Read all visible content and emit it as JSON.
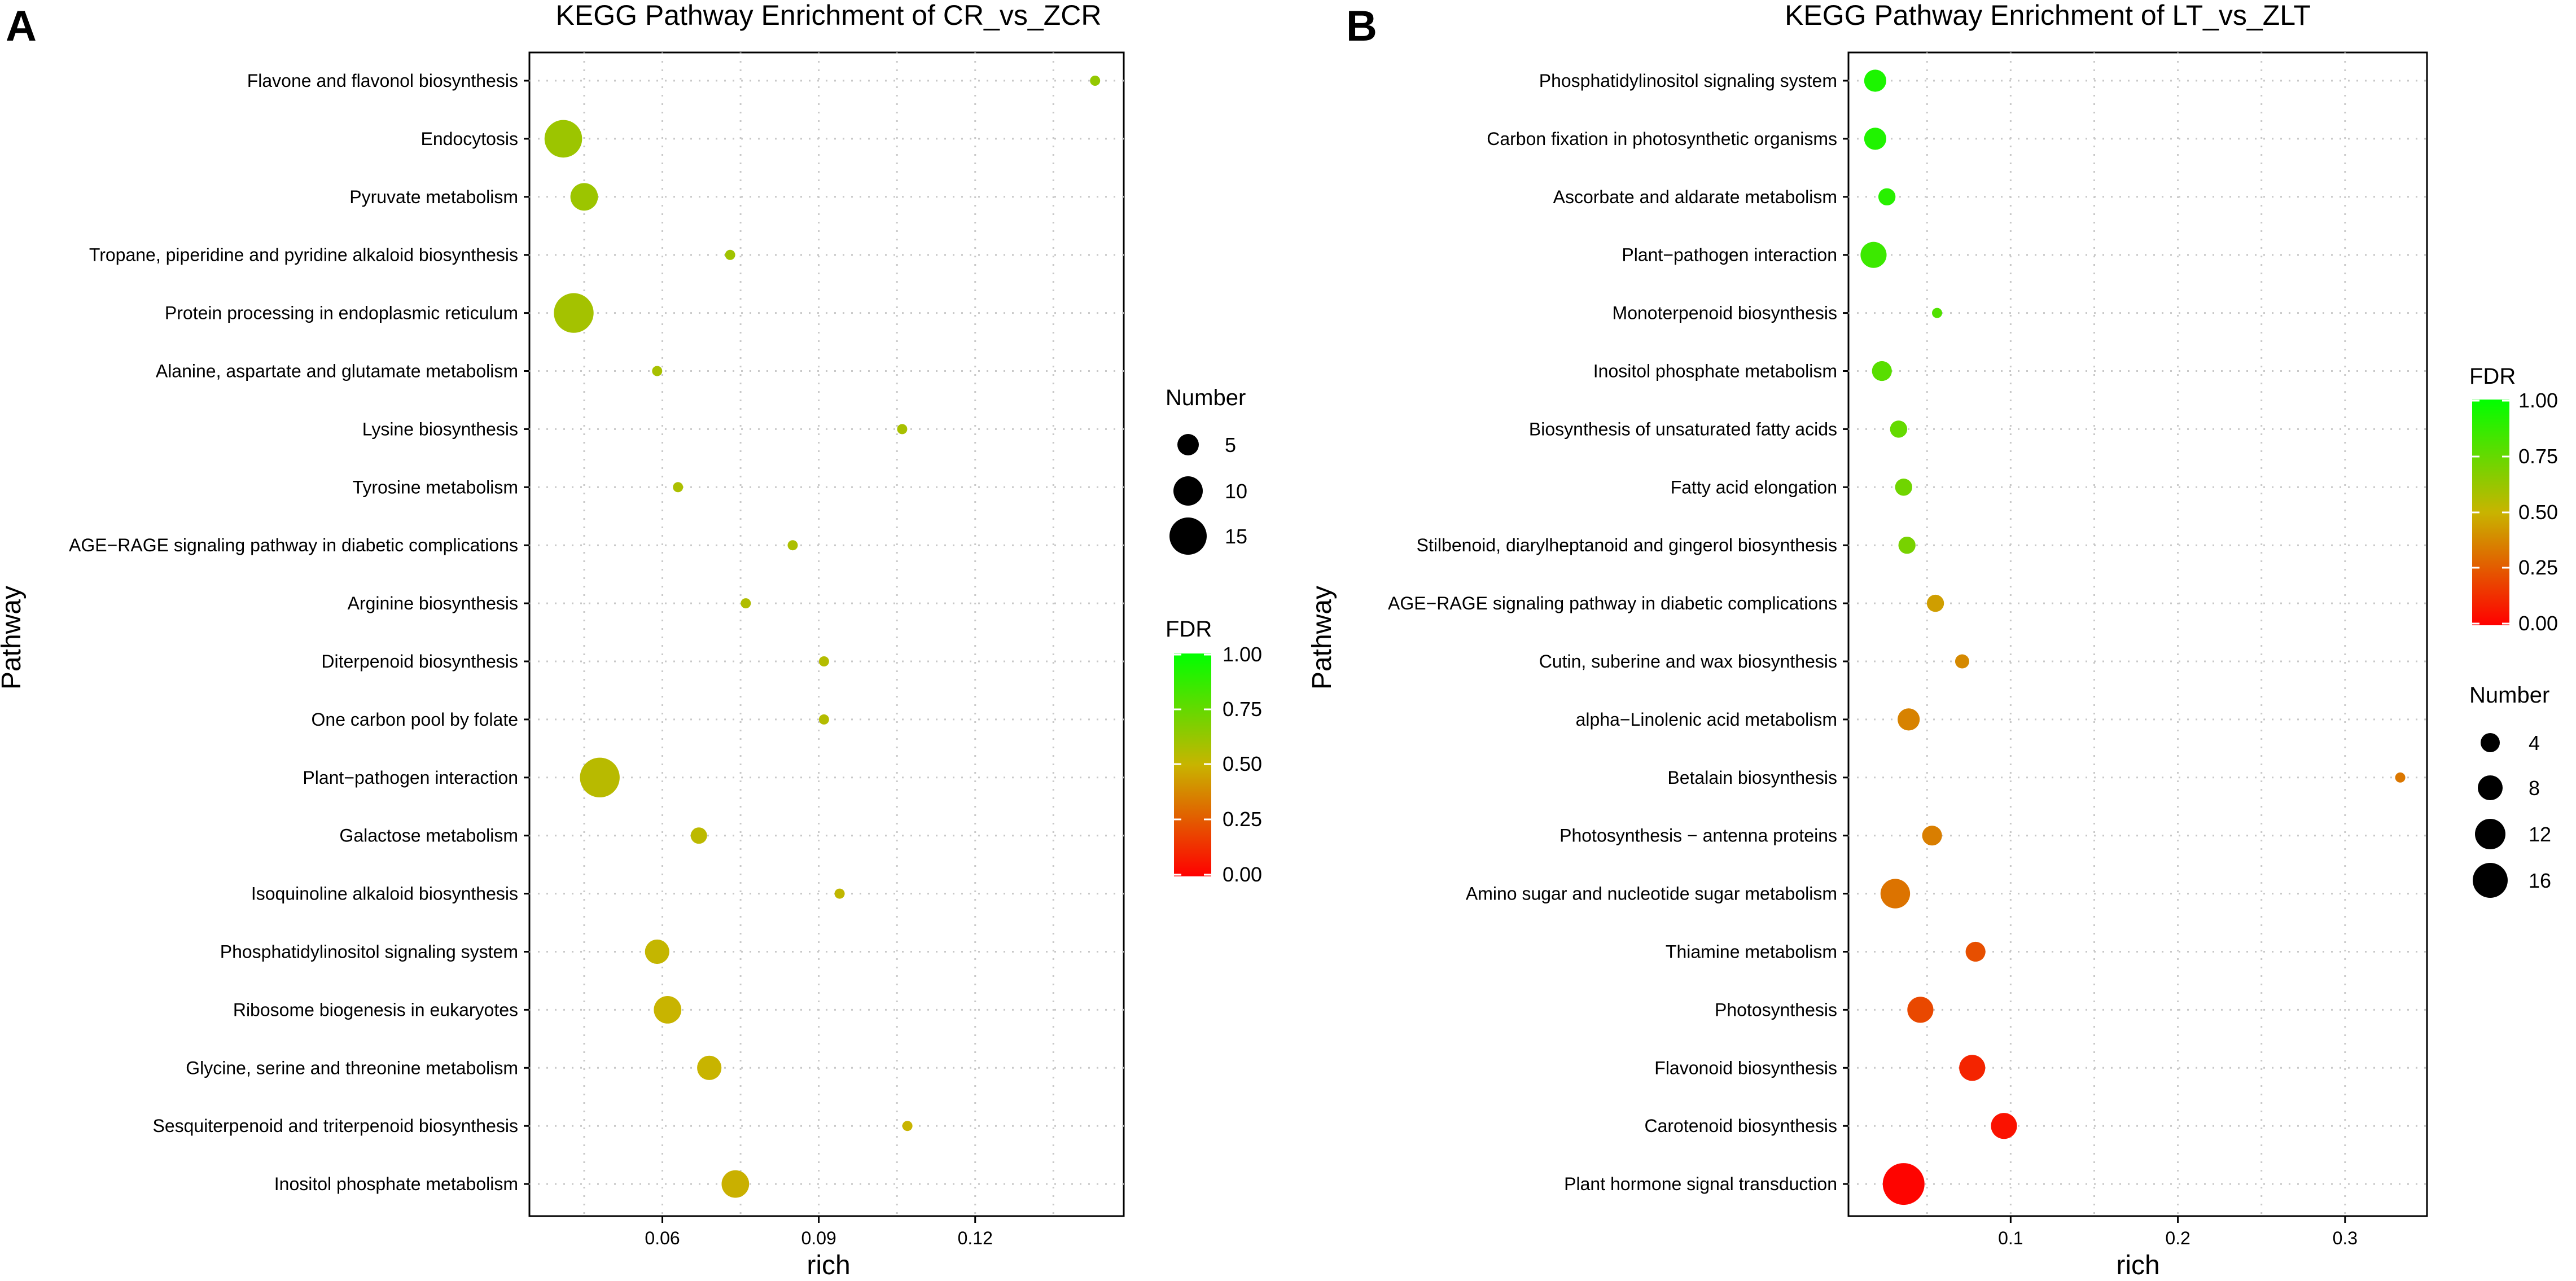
{
  "panels": [
    {
      "letter": "A",
      "title": "KEGG Pathway Enrichment of CR_vs_ZCR",
      "xlabel": "rich",
      "ylabel": "Pathway",
      "pathways": [
        "Flavone and flavonol biosynthesis",
        "Endocytosis",
        "Pyruvate metabolism",
        "Tropane, piperidine and pyridine alkaloid biosynthesis",
        "Protein processing in endoplasmic reticulum",
        "Alanine, aspartate and glutamate metabolism",
        "Lysine biosynthesis",
        "Tyrosine metabolism",
        "AGE−RAGE signaling pathway in diabetic complications",
        "Arginine biosynthesis",
        "Diterpenoid biosynthesis",
        "One carbon pool by folate",
        "Plant−pathogen interaction",
        "Galactose metabolism",
        "Isoquinoline alkaloid biosynthesis",
        "Phosphatidylinositol signaling system",
        "Ribosome biogenesis in eukaryotes",
        "Glycine, serine and threonine metabolism",
        "Sesquiterpenoid and triterpenoid biosynthesis",
        "Inositol phosphate metabolism"
      ],
      "x_ticks": [
        "0.06",
        "0.09",
        "0.12"
      ],
      "size_legend": {
        "title": "Number",
        "values": [
          "5",
          "10",
          "15"
        ]
      },
      "fdr_legend": {
        "title": "FDR",
        "values": [
          "1.00",
          "0.75",
          "0.50",
          "0.25",
          "0.00"
        ]
      }
    },
    {
      "letter": "B",
      "title": "KEGG Pathway Enrichment of LT_vs_ZLT",
      "xlabel": "rich",
      "ylabel": "Pathway",
      "pathways": [
        "Phosphatidylinositol signaling system",
        "Carbon fixation in photosynthetic organisms",
        "Ascorbate and aldarate metabolism",
        "Plant−pathogen interaction",
        "Monoterpenoid biosynthesis",
        "Inositol phosphate metabolism",
        "Biosynthesis of unsaturated fatty acids",
        "Fatty acid elongation",
        "Stilbenoid, diarylheptanoid and gingerol biosynthesis",
        "AGE−RAGE signaling pathway in diabetic complications",
        "Cutin, suberine and wax biosynthesis",
        "alpha−Linolenic acid metabolism",
        "Betalain biosynthesis",
        "Photosynthesis − antenna proteins",
        "Amino sugar and nucleotide sugar metabolism",
        "Thiamine metabolism",
        "Photosynthesis",
        "Flavonoid biosynthesis",
        "Carotenoid biosynthesis",
        "Plant hormone signal transduction"
      ],
      "x_ticks": [
        "0.1",
        "0.2",
        "0.3"
      ],
      "size_legend": {
        "title": "Number",
        "values": [
          "4",
          "8",
          "12",
          "16"
        ]
      },
      "fdr_legend": {
        "title": "FDR",
        "values": [
          "1.00",
          "0.75",
          "0.50",
          "0.25",
          "0.00"
        ]
      }
    }
  ],
  "chart_data": [
    {
      "type": "scatter",
      "title": "KEGG Pathway Enrichment of CR_vs_ZCR",
      "xlabel": "rich",
      "ylabel": "Pathway",
      "xlim": [
        0.0345,
        0.1485
      ],
      "xticks": [
        0.06,
        0.09,
        0.12
      ],
      "grid": true,
      "legend_position": "right",
      "size_range": [
        5,
        15
      ],
      "color_scale": {
        "low": "#FF0000",
        "mid": "#C8B400",
        "high": "#00FF00",
        "range": [
          0,
          1
        ]
      },
      "points": [
        {
          "pathway": "Flavone and flavonol biosynthesis",
          "rich": 0.143,
          "number": 1,
          "fdr": 0.63
        },
        {
          "pathway": "Endocytosis",
          "rich": 0.041,
          "number": 13,
          "fdr": 0.61
        },
        {
          "pathway": "Pyruvate metabolism",
          "rich": 0.045,
          "number": 9,
          "fdr": 0.61
        },
        {
          "pathway": "Tropane, piperidine and pyridine alkaloid biosynthesis",
          "rich": 0.073,
          "number": 4,
          "fdr": 0.6
        },
        {
          "pathway": "Protein processing in endoplasmic reticulum",
          "rich": 0.043,
          "number": 14,
          "fdr": 0.59
        },
        {
          "pathway": "Alanine, aspartate and glutamate metabolism",
          "rich": 0.059,
          "number": 5,
          "fdr": 0.58
        },
        {
          "pathway": "Lysine biosynthesis",
          "rich": 0.106,
          "number": 2,
          "fdr": 0.58
        },
        {
          "pathway": "Tyrosine metabolism",
          "rich": 0.063,
          "number": 5,
          "fdr": 0.57
        },
        {
          "pathway": "AGE−RAGE signaling pathway in diabetic complications",
          "rich": 0.085,
          "number": 3,
          "fdr": 0.57
        },
        {
          "pathway": "Arginine biosynthesis",
          "rich": 0.076,
          "number": 3,
          "fdr": 0.56
        },
        {
          "pathway": "Diterpenoid biosynthesis",
          "rich": 0.091,
          "number": 3,
          "fdr": 0.55
        },
        {
          "pathway": "One carbon pool by folate",
          "rich": 0.091,
          "number": 3,
          "fdr": 0.55
        },
        {
          "pathway": "Plant−pathogen interaction",
          "rich": 0.048,
          "number": 14,
          "fdr": 0.54
        },
        {
          "pathway": "Galactose metabolism",
          "rich": 0.067,
          "number": 6,
          "fdr": 0.53
        },
        {
          "pathway": "Isoquinoline alkaloid biosynthesis",
          "rich": 0.094,
          "number": 4,
          "fdr": 0.52
        },
        {
          "pathway": "Phosphatidylinositol signaling system",
          "rich": 0.059,
          "number": 8,
          "fdr": 0.51
        },
        {
          "pathway": "Ribosome biogenesis in eukaryotes",
          "rich": 0.061,
          "number": 9,
          "fdr": 0.5
        },
        {
          "pathway": "Glycine, serine and threonine metabolism",
          "rich": 0.069,
          "number": 8,
          "fdr": 0.5
        },
        {
          "pathway": "Sesquiterpenoid and triterpenoid biosynthesis",
          "rich": 0.107,
          "number": 5,
          "fdr": 0.5
        },
        {
          "pathway": "Inositol phosphate metabolism",
          "rich": 0.074,
          "number": 9,
          "fdr": 0.49
        }
      ]
    },
    {
      "type": "scatter",
      "title": "KEGG Pathway Enrichment of LT_vs_ZLT",
      "xlabel": "rich",
      "ylabel": "Pathway",
      "xlim": [
        0.003,
        0.349
      ],
      "xticks": [
        0.1,
        0.2,
        0.3
      ],
      "grid": true,
      "legend_position": "right",
      "size_range": [
        1,
        18
      ],
      "color_scale": {
        "low": "#FF0000",
        "mid": "#C8B400",
        "high": "#00FF00",
        "range": [
          0,
          1
        ]
      },
      "points": [
        {
          "pathway": "Phosphatidylinositol signaling system",
          "rich": 0.019,
          "number": 5,
          "fdr": 0.93
        },
        {
          "pathway": "Carbon fixation in photosynthetic organisms",
          "rich": 0.019,
          "number": 5,
          "fdr": 0.92
        },
        {
          "pathway": "Ascorbate and aldarate metabolism",
          "rich": 0.026,
          "number": 3,
          "fdr": 0.9
        },
        {
          "pathway": "Plant−pathogen interaction",
          "rich": 0.018,
          "number": 7,
          "fdr": 0.85
        },
        {
          "pathway": "Monoterpenoid biosynthesis",
          "rich": 0.056,
          "number": 1,
          "fdr": 0.8
        },
        {
          "pathway": "Inositol phosphate metabolism",
          "rich": 0.023,
          "number": 4,
          "fdr": 0.78
        },
        {
          "pathway": "Biosynthesis of unsaturated fatty acids",
          "rich": 0.033,
          "number": 3,
          "fdr": 0.75
        },
        {
          "pathway": "Fatty acid elongation",
          "rich": 0.036,
          "number": 3,
          "fdr": 0.72
        },
        {
          "pathway": "Stilbenoid, diarylheptanoid and gingerol biosynthesis",
          "rich": 0.038,
          "number": 3,
          "fdr": 0.7
        },
        {
          "pathway": "AGE−RAGE signaling pathway in diabetic complications",
          "rich": 0.055,
          "number": 3,
          "fdr": 0.44
        },
        {
          "pathway": "Cutin, suberine and wax biosynthesis",
          "rich": 0.071,
          "number": 2,
          "fdr": 0.38
        },
        {
          "pathway": "alpha−Linolenic acid metabolism",
          "rich": 0.039,
          "number": 5,
          "fdr": 0.36
        },
        {
          "pathway": "Betalain biosynthesis",
          "rich": 0.333,
          "number": 1,
          "fdr": 0.33
        },
        {
          "pathway": "Photosynthesis − antenna proteins",
          "rich": 0.053,
          "number": 4,
          "fdr": 0.35
        },
        {
          "pathway": "Amino sugar and nucleotide sugar metabolism",
          "rich": 0.031,
          "number": 9,
          "fdr": 0.32
        },
        {
          "pathway": "Thiamine metabolism",
          "rich": 0.079,
          "number": 4,
          "fdr": 0.22
        },
        {
          "pathway": "Photosynthesis",
          "rich": 0.046,
          "number": 7,
          "fdr": 0.2
        },
        {
          "pathway": "Flavonoid biosynthesis",
          "rich": 0.077,
          "number": 7,
          "fdr": 0.1
        },
        {
          "pathway": "Carotenoid biosynthesis",
          "rich": 0.096,
          "number": 7,
          "fdr": 0.05
        },
        {
          "pathway": "Plant hormone signal transduction",
          "rich": 0.036,
          "number": 18,
          "fdr": 0.01
        }
      ]
    }
  ]
}
